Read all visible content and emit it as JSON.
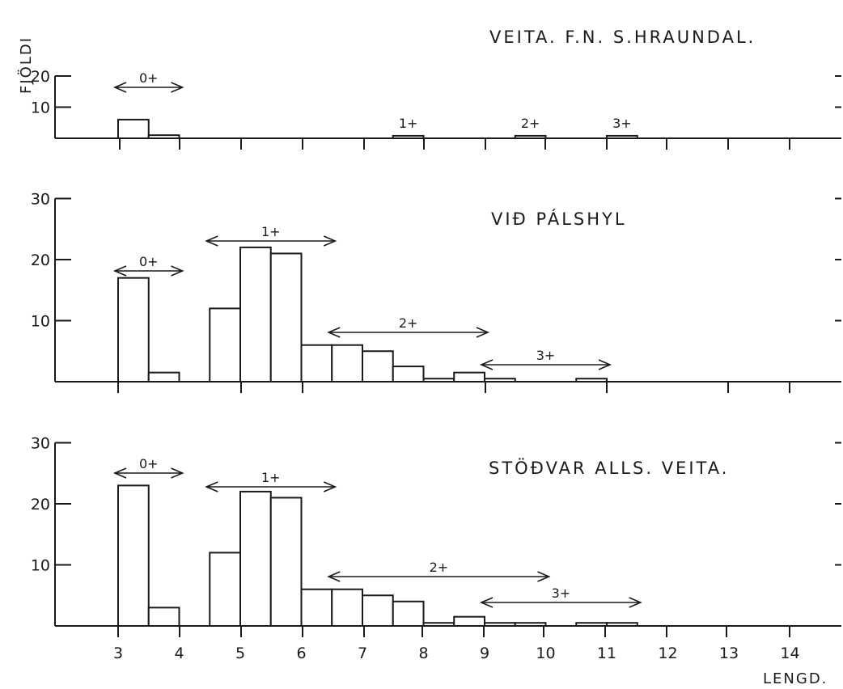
{
  "chart_data": [
    {
      "type": "bar",
      "title": "VEITA. F.N. S.HRAUNDAL.",
      "ylabel": "FJÖLDI",
      "xlabel": "",
      "ylim": [
        0,
        20
      ],
      "yticks": [
        "20",
        "10"
      ],
      "yticks_values": [
        20,
        10
      ],
      "bins": [
        {
          "x0": 3,
          "x1": 3.5,
          "value": 6
        },
        {
          "x0": 3.5,
          "x1": 4,
          "value": 1
        },
        {
          "x0": 7.5,
          "x1": 8,
          "value": 0.8
        },
        {
          "x0": 9.5,
          "x1": 10,
          "value": 0.8
        },
        {
          "x0": 11,
          "x1": 11.5,
          "value": 0.8
        }
      ],
      "age_groups": [
        {
          "label": "0+",
          "x0": 3,
          "x1": 4,
          "arrows": true
        },
        {
          "label": "1+",
          "x0": 7.5,
          "x1": 8,
          "arrows": false
        },
        {
          "label": "2+",
          "x0": 9.5,
          "x1": 10,
          "arrows": false
        },
        {
          "label": "3+",
          "x0": 11,
          "x1": 11.5,
          "arrows": false
        }
      ]
    },
    {
      "type": "bar",
      "title": "VIÐ PÁLSHYL",
      "ylabel": "",
      "xlabel": "",
      "ylim": [
        0,
        30
      ],
      "yticks": [
        "30",
        "20",
        "10"
      ],
      "yticks_values": [
        30,
        20,
        10
      ],
      "bins": [
        {
          "x0": 3,
          "x1": 3.5,
          "value": 17
        },
        {
          "x0": 3.5,
          "x1": 4,
          "value": 1.5
        },
        {
          "x0": 4.5,
          "x1": 5,
          "value": 12
        },
        {
          "x0": 5,
          "x1": 5.5,
          "value": 22
        },
        {
          "x0": 5.5,
          "x1": 6,
          "value": 21
        },
        {
          "x0": 6,
          "x1": 6.5,
          "value": 6
        },
        {
          "x0": 6.5,
          "x1": 7,
          "value": 6
        },
        {
          "x0": 7,
          "x1": 7.5,
          "value": 5
        },
        {
          "x0": 7.5,
          "x1": 8,
          "value": 2.5
        },
        {
          "x0": 8,
          "x1": 8.5,
          "value": 0.5
        },
        {
          "x0": 8.5,
          "x1": 9,
          "value": 1.5
        },
        {
          "x0": 9,
          "x1": 9.5,
          "value": 0.5
        },
        {
          "x0": 10.5,
          "x1": 11,
          "value": 0.5
        }
      ],
      "age_groups": [
        {
          "label": "0+",
          "x0": 3,
          "x1": 4,
          "arrows": true
        },
        {
          "label": "1+",
          "x0": 4.5,
          "x1": 6.5,
          "arrows": true
        },
        {
          "label": "2+",
          "x0": 6.5,
          "x1": 9,
          "arrows": true
        },
        {
          "label": "3+",
          "x0": 9,
          "x1": 11,
          "arrows": true
        }
      ]
    },
    {
      "type": "bar",
      "title": "STÖÐVAR ALLS. VEITA.",
      "ylabel": "",
      "xlabel": "LENGD.",
      "ylim": [
        0,
        30
      ],
      "yticks": [
        "30",
        "20",
        "10"
      ],
      "yticks_values": [
        30,
        20,
        10
      ],
      "xticks": [
        "3",
        "4",
        "5",
        "6",
        "7",
        "8",
        "9",
        "10",
        "11",
        "12",
        "13",
        "14"
      ],
      "xticks_values": [
        3,
        4,
        5,
        6,
        7,
        8,
        9,
        10,
        11,
        12,
        13,
        14
      ],
      "bins": [
        {
          "x0": 3,
          "x1": 3.5,
          "value": 23
        },
        {
          "x0": 3.5,
          "x1": 4,
          "value": 3
        },
        {
          "x0": 4.5,
          "x1": 5,
          "value": 12
        },
        {
          "x0": 5,
          "x1": 5.5,
          "value": 22
        },
        {
          "x0": 5.5,
          "x1": 6,
          "value": 21
        },
        {
          "x0": 6,
          "x1": 6.5,
          "value": 6
        },
        {
          "x0": 6.5,
          "x1": 7,
          "value": 6
        },
        {
          "x0": 7,
          "x1": 7.5,
          "value": 5
        },
        {
          "x0": 7.5,
          "x1": 8,
          "value": 4
        },
        {
          "x0": 8,
          "x1": 8.5,
          "value": 0.5
        },
        {
          "x0": 8.5,
          "x1": 9,
          "value": 1.5
        },
        {
          "x0": 9,
          "x1": 9.5,
          "value": 0.5
        },
        {
          "x0": 9.5,
          "x1": 10,
          "value": 0.5
        },
        {
          "x0": 10.5,
          "x1": 11,
          "value": 0.5
        },
        {
          "x0": 11,
          "x1": 11.5,
          "value": 0.5
        }
      ],
      "age_groups": [
        {
          "label": "0+",
          "x0": 3,
          "x1": 4,
          "arrows": true
        },
        {
          "label": "1+",
          "x0": 4.5,
          "x1": 6.5,
          "arrows": true
        },
        {
          "label": "2+",
          "x0": 6.5,
          "x1": 10,
          "arrows": true
        },
        {
          "label": "3+",
          "x0": 9,
          "x1": 11.5,
          "arrows": true
        }
      ]
    }
  ]
}
